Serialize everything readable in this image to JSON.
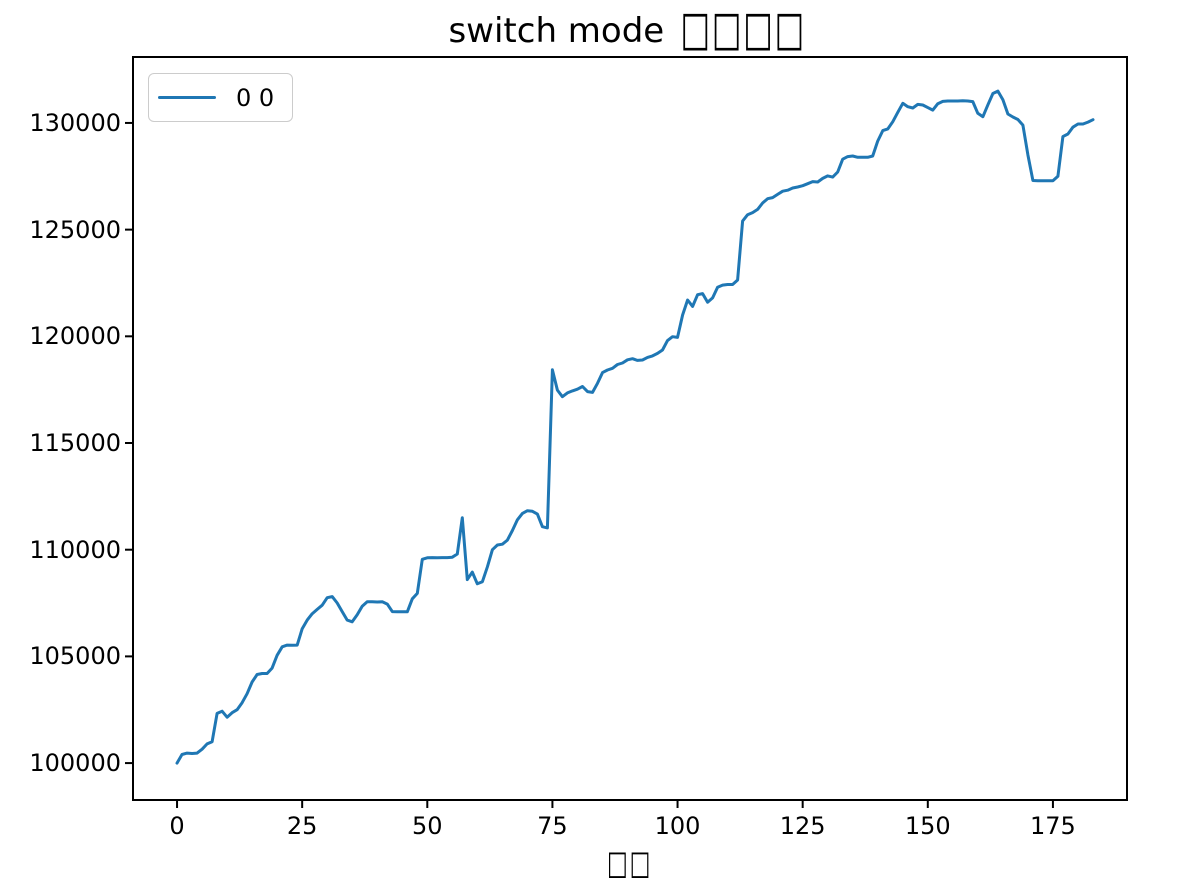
{
  "figure": {
    "title": "switch mode □□□□",
    "title_text": "switch mode ",
    "title_tofu": "□□□□",
    "xlabel_tofu": "□□",
    "background": "#ffffff",
    "line_color": "#1f77b4",
    "axis_color": "#000000",
    "legend": {
      "label": "0 0",
      "sample_color": "#1f77b4"
    }
  },
  "chart_data": {
    "type": "line",
    "title": "switch mode □□□□",
    "xlabel": "□□",
    "ylabel": "",
    "legend_position": "upper left",
    "grid": false,
    "x_ticks": [
      0,
      25,
      50,
      75,
      100,
      125,
      150,
      175
    ],
    "y_ticks": [
      100000,
      105000,
      110000,
      115000,
      120000,
      125000,
      130000
    ],
    "xlim": [
      -8.8,
      189.8
    ],
    "ylim": [
      98270,
      133090
    ],
    "series": [
      {
        "name": "0 0",
        "color": "#1f77b4",
        "x_start": 0,
        "x_step": 1,
        "values": [
          100000,
          100400,
          100470,
          100450,
          100470,
          100650,
          100900,
          101000,
          102330,
          102430,
          102150,
          102360,
          102500,
          102830,
          103250,
          103800,
          104150,
          104200,
          104200,
          104450,
          105050,
          105450,
          105530,
          105520,
          105530,
          106300,
          106700,
          107000,
          107200,
          107400,
          107750,
          107800,
          107500,
          107100,
          106700,
          106620,
          106950,
          107350,
          107560,
          107560,
          107550,
          107560,
          107450,
          107100,
          107090,
          107090,
          107090,
          107700,
          107950,
          109550,
          109620,
          109630,
          109620,
          109630,
          109630,
          109650,
          109800,
          111500,
          108600,
          108950,
          108400,
          108500,
          109200,
          110000,
          110220,
          110260,
          110450,
          110900,
          111400,
          111700,
          111830,
          111800,
          111670,
          111080,
          111020,
          118430,
          117480,
          117170,
          117350,
          117440,
          117520,
          117650,
          117410,
          117370,
          117800,
          118300,
          118420,
          118500,
          118680,
          118750,
          118900,
          118950,
          118870,
          118890,
          119010,
          119080,
          119200,
          119360,
          119800,
          119980,
          119950,
          121000,
          121700,
          121400,
          121950,
          122000,
          121600,
          121800,
          122300,
          122400,
          122430,
          122430,
          122640,
          125400,
          125700,
          125800,
          125950,
          126250,
          126450,
          126500,
          126650,
          126800,
          126850,
          126950,
          127000,
          127060,
          127150,
          127250,
          127230,
          127400,
          127520,
          127460,
          127700,
          128300,
          128420,
          128450,
          128390,
          128390,
          128390,
          128450,
          129150,
          129640,
          129720,
          130060,
          130500,
          130920,
          130760,
          130700,
          130870,
          130840,
          130720,
          130600,
          130900,
          131010,
          131030,
          131030,
          131030,
          131040,
          131030,
          131000,
          130450,
          130290,
          130850,
          131380,
          131490,
          131090,
          130420,
          130280,
          130160,
          129900,
          128500,
          127300,
          127290,
          127290,
          127290,
          127290,
          127500,
          129360,
          129480,
          129800,
          129950,
          129950,
          130040,
          130150
        ]
      }
    ]
  }
}
